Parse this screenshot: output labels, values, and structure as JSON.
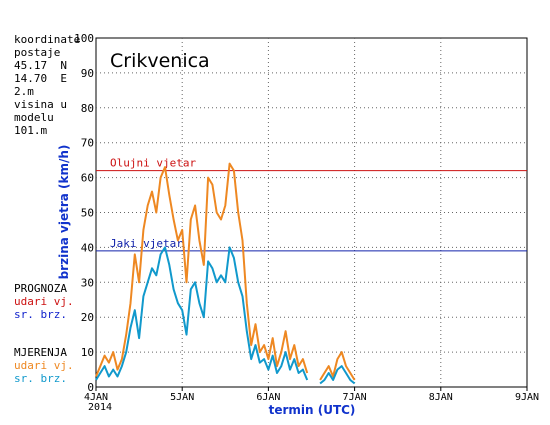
{
  "sidebar": {
    "coords_title": "koordinate postaje",
    "lat": "45.17  N",
    "lon": "14.70  E",
    "alt": "2.m",
    "model_title": "visina u modelu",
    "model_alt": "101.m",
    "forecast_title": "PROGNOZA",
    "forecast_gust": "udari vj.",
    "forecast_mean": "sr. brz.",
    "measured_title": "MJERENJA",
    "measured_gust": "udari vj.",
    "measured_mean": "sr. brz."
  },
  "colors": {
    "forecast_gust": "#cc1111",
    "forecast_mean": "#1122cc",
    "measured_gust": "#ee8822",
    "measured_mean": "#1199cc",
    "storm_line": "#cc1111",
    "strong_line": "#1122aa",
    "axis_label": "#1133cc"
  },
  "chart_data": {
    "type": "line",
    "title": "Crikvenica",
    "xlabel": "termin (UTC)",
    "ylabel": "brzina vjetra (km/h)",
    "xlim": [
      0,
      5
    ],
    "ylim": [
      0,
      100
    ],
    "y_ticks": [
      0,
      10,
      20,
      30,
      40,
      50,
      60,
      70,
      80,
      90,
      100
    ],
    "x_ticks": [
      0,
      1,
      2,
      3,
      4,
      5
    ],
    "x_tick_labels": [
      "4JAN",
      "5JAN",
      "6JAN",
      "7JAN",
      "8JAN",
      "9JAN"
    ],
    "x_sub_label": "2014",
    "grid": true,
    "thresholds": [
      {
        "label": "Olujni vjetar",
        "value": 62
      },
      {
        "label": "Jaki vjetar",
        "value": 39
      }
    ],
    "series": [
      {
        "name": "MJERENJA udari vj.",
        "segments": [
          [
            [
              0.0,
              3
            ],
            [
              0.05,
              6
            ],
            [
              0.1,
              9
            ],
            [
              0.15,
              7
            ],
            [
              0.2,
              10
            ],
            [
              0.25,
              5
            ],
            [
              0.3,
              8
            ],
            [
              0.35,
              15
            ],
            [
              0.4,
              24
            ],
            [
              0.45,
              38
            ],
            [
              0.5,
              30
            ],
            [
              0.55,
              45
            ],
            [
              0.6,
              52
            ],
            [
              0.65,
              56
            ],
            [
              0.7,
              50
            ],
            [
              0.75,
              60
            ],
            [
              0.8,
              63
            ],
            [
              0.85,
              55
            ],
            [
              0.9,
              48
            ],
            [
              0.95,
              42
            ],
            [
              1.0,
              45
            ],
            [
              1.05,
              30
            ],
            [
              1.1,
              48
            ],
            [
              1.15,
              52
            ],
            [
              1.2,
              42
            ],
            [
              1.25,
              35
            ],
            [
              1.3,
              60
            ],
            [
              1.35,
              58
            ],
            [
              1.4,
              50
            ],
            [
              1.45,
              48
            ],
            [
              1.5,
              52
            ],
            [
              1.55,
              64
            ],
            [
              1.6,
              62
            ],
            [
              1.65,
              50
            ],
            [
              1.7,
              42
            ],
            [
              1.75,
              24
            ],
            [
              1.8,
              12
            ],
            [
              1.85,
              18
            ],
            [
              1.9,
              10
            ],
            [
              1.95,
              12
            ],
            [
              2.0,
              8
            ],
            [
              2.05,
              14
            ],
            [
              2.1,
              6
            ],
            [
              2.15,
              10
            ],
            [
              2.2,
              16
            ],
            [
              2.25,
              8
            ],
            [
              2.3,
              12
            ],
            [
              2.35,
              6
            ],
            [
              2.4,
              8
            ],
            [
              2.45,
              4
            ]
          ],
          [
            [
              2.6,
              2
            ],
            [
              2.65,
              4
            ],
            [
              2.7,
              6
            ],
            [
              2.75,
              3
            ],
            [
              2.8,
              8
            ],
            [
              2.85,
              10
            ],
            [
              2.9,
              6
            ],
            [
              2.95,
              4
            ],
            [
              3.0,
              2
            ]
          ]
        ]
      },
      {
        "name": "MJERENJA sr. brz.",
        "segments": [
          [
            [
              0.0,
              2
            ],
            [
              0.05,
              4
            ],
            [
              0.1,
              6
            ],
            [
              0.15,
              3
            ],
            [
              0.2,
              5
            ],
            [
              0.25,
              3
            ],
            [
              0.3,
              6
            ],
            [
              0.35,
              10
            ],
            [
              0.4,
              17
            ],
            [
              0.45,
              22
            ],
            [
              0.5,
              14
            ],
            [
              0.55,
              26
            ],
            [
              0.6,
              30
            ],
            [
              0.65,
              34
            ],
            [
              0.7,
              32
            ],
            [
              0.75,
              38
            ],
            [
              0.8,
              40
            ],
            [
              0.85,
              35
            ],
            [
              0.9,
              28
            ],
            [
              0.95,
              24
            ],
            [
              1.0,
              22
            ],
            [
              1.05,
              15
            ],
            [
              1.1,
              28
            ],
            [
              1.15,
              30
            ],
            [
              1.2,
              24
            ],
            [
              1.25,
              20
            ],
            [
              1.3,
              36
            ],
            [
              1.35,
              34
            ],
            [
              1.4,
              30
            ],
            [
              1.45,
              32
            ],
            [
              1.5,
              30
            ],
            [
              1.55,
              40
            ],
            [
              1.6,
              37
            ],
            [
              1.65,
              30
            ],
            [
              1.7,
              26
            ],
            [
              1.75,
              16
            ],
            [
              1.8,
              8
            ],
            [
              1.85,
              12
            ],
            [
              1.9,
              7
            ],
            [
              1.95,
              8
            ],
            [
              2.0,
              5
            ],
            [
              2.05,
              9
            ],
            [
              2.1,
              4
            ],
            [
              2.15,
              6
            ],
            [
              2.2,
              10
            ],
            [
              2.25,
              5
            ],
            [
              2.3,
              8
            ],
            [
              2.35,
              4
            ],
            [
              2.4,
              5
            ],
            [
              2.45,
              2
            ]
          ],
          [
            [
              2.6,
              1
            ],
            [
              2.65,
              2
            ],
            [
              2.7,
              4
            ],
            [
              2.75,
              2
            ],
            [
              2.8,
              5
            ],
            [
              2.85,
              6
            ],
            [
              2.9,
              4
            ],
            [
              2.95,
              2
            ],
            [
              3.0,
              1
            ]
          ]
        ]
      }
    ]
  }
}
